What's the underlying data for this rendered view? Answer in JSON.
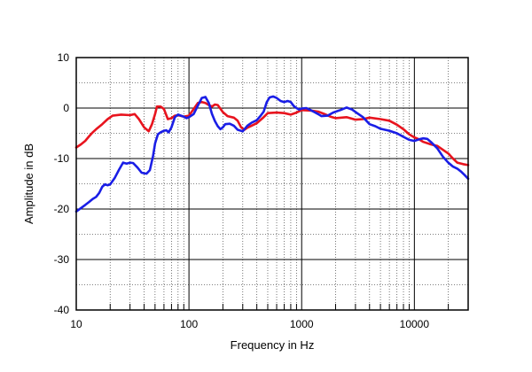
{
  "chart_data": {
    "type": "line",
    "title": "",
    "xlabel": "Frequency in Hz",
    "ylabel": "Amplitude in dB",
    "x_scale": "log",
    "xlim": [
      10,
      30000
    ],
    "ylim": [
      -40,
      10
    ],
    "grid": true,
    "x_tick_labels": [
      {
        "value": 10,
        "label": "10"
      },
      {
        "value": 100,
        "label": "100"
      },
      {
        "value": 1000,
        "label": "1000"
      },
      {
        "value": 10000,
        "label": "10000"
      }
    ],
    "y_tick_labels": [
      {
        "value": 10,
        "label": "10"
      },
      {
        "value": 0,
        "label": "0"
      },
      {
        "value": -10,
        "label": "-10"
      },
      {
        "value": -20,
        "label": "-20"
      },
      {
        "value": -30,
        "label": "-30"
      },
      {
        "value": -40,
        "label": "-40"
      }
    ],
    "series": [
      {
        "color": "#e8141e",
        "points": [
          [
            10,
            -7.8
          ],
          [
            11,
            -7.2
          ],
          [
            12,
            -6.5
          ],
          [
            13,
            -5.6
          ],
          [
            14,
            -4.8
          ],
          [
            15,
            -4.2
          ],
          [
            17,
            -3.2
          ],
          [
            19,
            -2.2
          ],
          [
            21,
            -1.5
          ],
          [
            25,
            -1.3
          ],
          [
            30,
            -1.4
          ],
          [
            33,
            -1.2
          ],
          [
            36,
            -2.2
          ],
          [
            40,
            -3.8
          ],
          [
            44,
            -4.6
          ],
          [
            47,
            -3.2
          ],
          [
            50,
            -1.2
          ],
          [
            52,
            0.3
          ],
          [
            56,
            0.3
          ],
          [
            60,
            -0.2
          ],
          [
            65,
            -2.2
          ],
          [
            70,
            -2.0
          ],
          [
            75,
            -1.5
          ],
          [
            80,
            -1.4
          ],
          [
            90,
            -1.7
          ],
          [
            100,
            -1.5
          ],
          [
            110,
            -0.2
          ],
          [
            120,
            1.0
          ],
          [
            130,
            1.2
          ],
          [
            140,
            1.0
          ],
          [
            150,
            0.6
          ],
          [
            160,
            0.3
          ],
          [
            170,
            0.7
          ],
          [
            180,
            0.6
          ],
          [
            200,
            -0.8
          ],
          [
            220,
            -1.6
          ],
          [
            250,
            -1.9
          ],
          [
            270,
            -2.5
          ],
          [
            290,
            -3.8
          ],
          [
            310,
            -4.3
          ],
          [
            330,
            -3.9
          ],
          [
            360,
            -3.5
          ],
          [
            400,
            -3.0
          ],
          [
            450,
            -2.0
          ],
          [
            500,
            -1.0
          ],
          [
            600,
            -0.9
          ],
          [
            700,
            -1.0
          ],
          [
            800,
            -1.3
          ],
          [
            900,
            -0.9
          ],
          [
            1000,
            -0.4
          ],
          [
            1200,
            -0.5
          ],
          [
            1400,
            -0.7
          ],
          [
            1600,
            -1.2
          ],
          [
            1800,
            -1.7
          ],
          [
            2000,
            -2.0
          ],
          [
            2500,
            -1.8
          ],
          [
            3000,
            -2.3
          ],
          [
            3500,
            -2.2
          ],
          [
            4000,
            -1.9
          ],
          [
            5000,
            -2.2
          ],
          [
            6000,
            -2.5
          ],
          [
            7000,
            -3.3
          ],
          [
            8000,
            -4.2
          ],
          [
            9000,
            -5.2
          ],
          [
            10000,
            -5.8
          ],
          [
            11000,
            -6.2
          ],
          [
            12000,
            -6.7
          ],
          [
            14000,
            -7.2
          ],
          [
            16000,
            -7.5
          ],
          [
            18000,
            -8.3
          ],
          [
            20000,
            -9.0
          ],
          [
            22000,
            -10.0
          ],
          [
            24000,
            -10.8
          ],
          [
            27000,
            -11.1
          ],
          [
            30000,
            -11.3
          ]
        ]
      },
      {
        "color": "#1a1ee6",
        "points": [
          [
            10,
            -20.5
          ],
          [
            11,
            -19.8
          ],
          [
            12,
            -19.2
          ],
          [
            13,
            -18.6
          ],
          [
            14,
            -18.0
          ],
          [
            15,
            -17.6
          ],
          [
            16,
            -16.8
          ],
          [
            17,
            -15.6
          ],
          [
            18,
            -15.1
          ],
          [
            19,
            -15.3
          ],
          [
            20,
            -15.1
          ],
          [
            22,
            -13.8
          ],
          [
            24,
            -12.2
          ],
          [
            26,
            -10.8
          ],
          [
            28,
            -11.0
          ],
          [
            30,
            -10.8
          ],
          [
            32,
            -10.9
          ],
          [
            35,
            -11.8
          ],
          [
            38,
            -12.8
          ],
          [
            42,
            -13.0
          ],
          [
            45,
            -12.3
          ],
          [
            48,
            -9.5
          ],
          [
            50,
            -7.0
          ],
          [
            53,
            -5.2
          ],
          [
            56,
            -4.8
          ],
          [
            60,
            -4.5
          ],
          [
            63,
            -4.4
          ],
          [
            66,
            -4.8
          ],
          [
            70,
            -3.8
          ],
          [
            75,
            -1.8
          ],
          [
            80,
            -1.3
          ],
          [
            85,
            -1.5
          ],
          [
            90,
            -1.7
          ],
          [
            95,
            -2.0
          ],
          [
            100,
            -1.8
          ],
          [
            110,
            -1.2
          ],
          [
            120,
            0.5
          ],
          [
            130,
            2.0
          ],
          [
            140,
            2.2
          ],
          [
            150,
            1.0
          ],
          [
            160,
            -1.2
          ],
          [
            170,
            -2.6
          ],
          [
            180,
            -3.6
          ],
          [
            190,
            -4.2
          ],
          [
            200,
            -3.8
          ],
          [
            210,
            -3.2
          ],
          [
            230,
            -3.1
          ],
          [
            250,
            -3.5
          ],
          [
            270,
            -4.3
          ],
          [
            300,
            -4.6
          ],
          [
            330,
            -3.5
          ],
          [
            360,
            -2.9
          ],
          [
            400,
            -2.4
          ],
          [
            430,
            -1.6
          ],
          [
            460,
            -0.7
          ],
          [
            490,
            1.2
          ],
          [
            520,
            2.1
          ],
          [
            560,
            2.3
          ],
          [
            600,
            2.0
          ],
          [
            650,
            1.4
          ],
          [
            700,
            1.2
          ],
          [
            750,
            1.4
          ],
          [
            800,
            1.2
          ],
          [
            850,
            0.4
          ],
          [
            900,
            0.0
          ],
          [
            950,
            -0.3
          ],
          [
            1000,
            -0.1
          ],
          [
            1100,
            0.0
          ],
          [
            1200,
            -0.4
          ],
          [
            1300,
            -0.8
          ],
          [
            1400,
            -1.2
          ],
          [
            1500,
            -1.6
          ],
          [
            1700,
            -1.5
          ],
          [
            1900,
            -0.9
          ],
          [
            2200,
            -0.4
          ],
          [
            2500,
            0.1
          ],
          [
            2800,
            -0.3
          ],
          [
            3100,
            -1.0
          ],
          [
            3500,
            -1.8
          ],
          [
            4000,
            -3.2
          ],
          [
            4500,
            -3.6
          ],
          [
            5000,
            -4.1
          ],
          [
            6000,
            -4.5
          ],
          [
            7000,
            -5.0
          ],
          [
            8000,
            -5.7
          ],
          [
            9000,
            -6.3
          ],
          [
            10000,
            -6.5
          ],
          [
            11000,
            -6.2
          ],
          [
            12000,
            -6.0
          ],
          [
            13000,
            -6.1
          ],
          [
            14000,
            -6.7
          ],
          [
            16000,
            -8.0
          ],
          [
            18000,
            -9.7
          ],
          [
            20000,
            -10.8
          ],
          [
            22000,
            -11.6
          ],
          [
            24000,
            -12.0
          ],
          [
            26000,
            -12.6
          ],
          [
            28000,
            -13.3
          ],
          [
            30000,
            -14.0
          ]
        ]
      }
    ]
  }
}
